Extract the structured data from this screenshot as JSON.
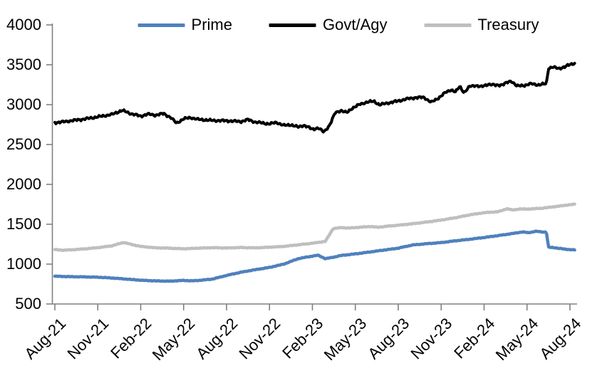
{
  "chart_data": {
    "type": "line",
    "title": "",
    "xlabel": "",
    "ylabel": "",
    "ylim": [
      500,
      4000
    ],
    "y_ticks": [
      500,
      1000,
      1500,
      2000,
      2500,
      3000,
      3500,
      4000
    ],
    "x_tick_labels": [
      "Aug-21",
      "Nov-21",
      "Feb-22",
      "May-22",
      "Aug-22",
      "Nov-22",
      "Feb-23",
      "May-23",
      "Aug-23",
      "Nov-23",
      "Feb-24",
      "May-24",
      "Aug-24"
    ],
    "x_months_per_tick": 3,
    "x_end_month": 36.35,
    "legend_position": "top",
    "grid": false,
    "axis_color": "#808080",
    "text_color": "#000000",
    "series": [
      {
        "name": "Prime",
        "color": "#4F81BD",
        "width": 4.5,
        "jitter": 4,
        "anchors": [
          [
            0,
            848
          ],
          [
            1,
            843
          ],
          [
            2,
            840
          ],
          [
            3,
            836
          ],
          [
            4,
            826
          ],
          [
            5,
            812
          ],
          [
            6,
            798
          ],
          [
            7,
            790
          ],
          [
            8,
            786
          ],
          [
            9,
            796
          ],
          [
            9.6,
            790
          ],
          [
            10.2,
            798
          ],
          [
            11,
            812
          ],
          [
            12,
            858
          ],
          [
            13,
            898
          ],
          [
            14,
            930
          ],
          [
            15,
            958
          ],
          [
            16,
            1000
          ],
          [
            17,
            1068
          ],
          [
            17.5,
            1085
          ],
          [
            18,
            1100
          ],
          [
            18.4,
            1112
          ],
          [
            18.9,
            1068
          ],
          [
            19.5,
            1088
          ],
          [
            20,
            1108
          ],
          [
            21,
            1128
          ],
          [
            22,
            1152
          ],
          [
            23,
            1176
          ],
          [
            24,
            1200
          ],
          [
            25,
            1240
          ],
          [
            26,
            1256
          ],
          [
            27,
            1270
          ],
          [
            28,
            1292
          ],
          [
            29,
            1312
          ],
          [
            30,
            1334
          ],
          [
            31,
            1358
          ],
          [
            32,
            1384
          ],
          [
            32.7,
            1404
          ],
          [
            33.1,
            1394
          ],
          [
            33.6,
            1412
          ],
          [
            34.1,
            1402
          ],
          [
            34.35,
            1404
          ],
          [
            34.5,
            1212
          ],
          [
            35,
            1204
          ],
          [
            35.7,
            1186
          ],
          [
            36.35,
            1178
          ]
        ]
      },
      {
        "name": "Govt/Agy",
        "color": "#000000",
        "width": 4,
        "jitter": 17,
        "anchors": [
          [
            0,
            2775
          ],
          [
            0.5,
            2782
          ],
          [
            1,
            2795
          ],
          [
            2,
            2818
          ],
          [
            3,
            2846
          ],
          [
            4,
            2878
          ],
          [
            4.7,
            2928
          ],
          [
            5.3,
            2888
          ],
          [
            6,
            2855
          ],
          [
            6.5,
            2882
          ],
          [
            7,
            2868
          ],
          [
            7.6,
            2888
          ],
          [
            8.1,
            2838
          ],
          [
            8.5,
            2768
          ],
          [
            9,
            2822
          ],
          [
            9.5,
            2838
          ],
          [
            10,
            2815
          ],
          [
            11,
            2802
          ],
          [
            12,
            2798
          ],
          [
            13,
            2788
          ],
          [
            13.5,
            2812
          ],
          [
            14,
            2782
          ],
          [
            15,
            2758
          ],
          [
            15.5,
            2778
          ],
          [
            16,
            2738
          ],
          [
            16.5,
            2748
          ],
          [
            17,
            2718
          ],
          [
            17.4,
            2742
          ],
          [
            18,
            2692
          ],
          [
            18.4,
            2708
          ],
          [
            18.8,
            2656
          ],
          [
            19.2,
            2742
          ],
          [
            19.6,
            2898
          ],
          [
            20,
            2928
          ],
          [
            20.4,
            2898
          ],
          [
            20.8,
            2958
          ],
          [
            21.3,
            3002
          ],
          [
            21.8,
            3032
          ],
          [
            22.3,
            3042
          ],
          [
            22.7,
            2998
          ],
          [
            23.2,
            3018
          ],
          [
            24,
            3046
          ],
          [
            24.6,
            3072
          ],
          [
            25.2,
            3088
          ],
          [
            25.8,
            3092
          ],
          [
            26.3,
            3028
          ],
          [
            26.8,
            3082
          ],
          [
            27.3,
            3152
          ],
          [
            27.7,
            3188
          ],
          [
            28,
            3158
          ],
          [
            28.3,
            3228
          ],
          [
            28.6,
            3152
          ],
          [
            29,
            3228
          ],
          [
            29.4,
            3242
          ],
          [
            29.8,
            3222
          ],
          [
            30.3,
            3258
          ],
          [
            30.8,
            3242
          ],
          [
            31.3,
            3252
          ],
          [
            31.9,
            3298
          ],
          [
            32.3,
            3232
          ],
          [
            32.8,
            3242
          ],
          [
            33.3,
            3262
          ],
          [
            33.8,
            3248
          ],
          [
            34.35,
            3262
          ],
          [
            34.5,
            3458
          ],
          [
            34.8,
            3472
          ],
          [
            35.2,
            3452
          ],
          [
            35.6,
            3472
          ],
          [
            36,
            3502
          ],
          [
            36.35,
            3522
          ]
        ]
      },
      {
        "name": "Treasury",
        "color": "#BFBFBF",
        "width": 4.5,
        "jitter": 4,
        "anchors": [
          [
            0,
            1182
          ],
          [
            0.6,
            1174
          ],
          [
            1.2,
            1180
          ],
          [
            2,
            1190
          ],
          [
            3,
            1206
          ],
          [
            4,
            1230
          ],
          [
            4.8,
            1272
          ],
          [
            5.5,
            1240
          ],
          [
            6,
            1222
          ],
          [
            7,
            1205
          ],
          [
            8,
            1200
          ],
          [
            9,
            1192
          ],
          [
            10,
            1200
          ],
          [
            11,
            1206
          ],
          [
            12,
            1202
          ],
          [
            13,
            1208
          ],
          [
            14,
            1204
          ],
          [
            15,
            1212
          ],
          [
            16,
            1222
          ],
          [
            17,
            1242
          ],
          [
            18,
            1262
          ],
          [
            18.9,
            1285
          ],
          [
            19.45,
            1445
          ],
          [
            20,
            1458
          ],
          [
            20.5,
            1452
          ],
          [
            21,
            1458
          ],
          [
            22,
            1472
          ],
          [
            22.6,
            1462
          ],
          [
            23.2,
            1475
          ],
          [
            24,
            1488
          ],
          [
            25,
            1506
          ],
          [
            26,
            1528
          ],
          [
            27,
            1552
          ],
          [
            28,
            1582
          ],
          [
            29,
            1618
          ],
          [
            30,
            1645
          ],
          [
            31,
            1658
          ],
          [
            31.6,
            1695
          ],
          [
            32,
            1678
          ],
          [
            32.5,
            1692
          ],
          [
            33,
            1690
          ],
          [
            34,
            1700
          ],
          [
            35,
            1722
          ],
          [
            35.7,
            1738
          ],
          [
            36.35,
            1752
          ]
        ]
      }
    ]
  }
}
